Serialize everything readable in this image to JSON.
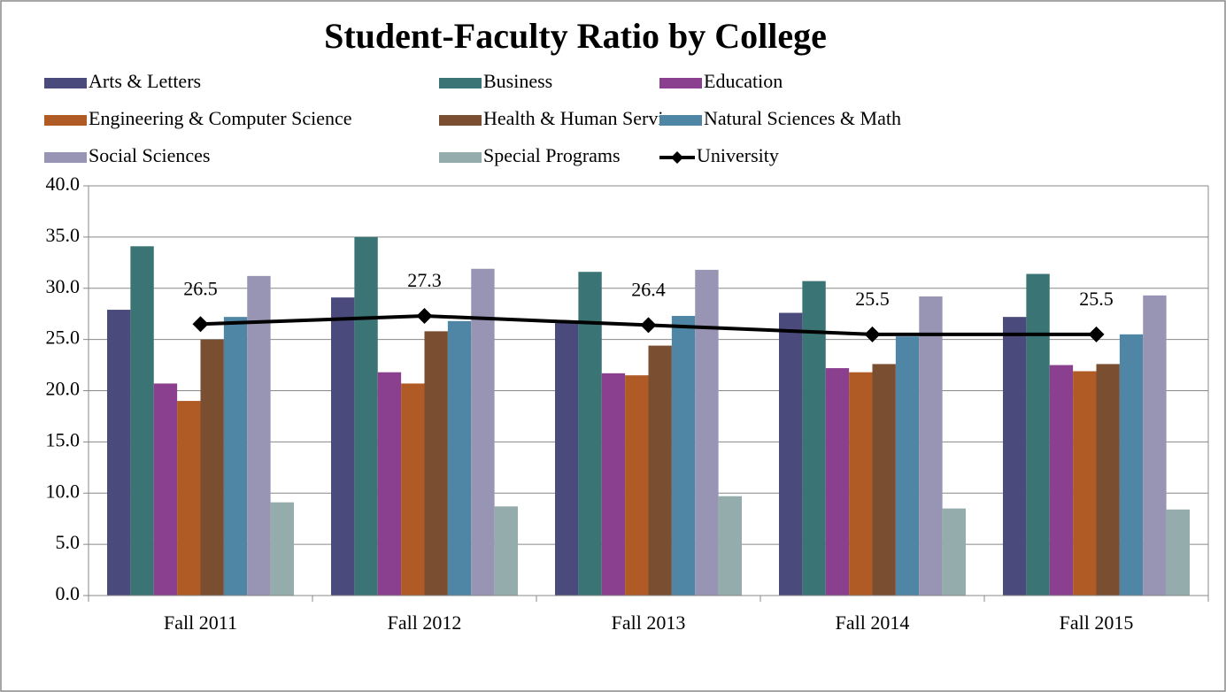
{
  "chart_data": {
    "type": "bar",
    "title": "Student-Faculty Ratio by College",
    "categories": [
      "Fall 2011",
      "Fall 2012",
      "Fall 2013",
      "Fall 2014",
      "Fall 2015"
    ],
    "series": [
      {
        "name": "Arts & Letters",
        "color": "#4a4a7c",
        "values": [
          27.9,
          29.1,
          26.6,
          27.6,
          27.2
        ]
      },
      {
        "name": "Business",
        "color": "#3a7474",
        "values": [
          34.1,
          35.0,
          31.6,
          30.7,
          31.4
        ]
      },
      {
        "name": "Education",
        "color": "#8b3f8f",
        "values": [
          20.7,
          21.8,
          21.7,
          22.2,
          22.5
        ]
      },
      {
        "name": "Engineering & Computer Science",
        "color": "#b05a25",
        "values": [
          19.0,
          20.7,
          21.5,
          21.8,
          21.9
        ]
      },
      {
        "name": "Health & Human Services",
        "color": "#7a4e30",
        "values": [
          25.0,
          25.8,
          24.4,
          22.6,
          22.6
        ]
      },
      {
        "name": "Natural Sciences & Math",
        "color": "#4f86a6",
        "values": [
          27.2,
          26.8,
          27.3,
          25.3,
          25.5
        ]
      },
      {
        "name": "Social Sciences",
        "color": "#9795b3",
        "values": [
          31.2,
          31.9,
          31.8,
          29.2,
          29.3
        ]
      },
      {
        "name": "Special Programs",
        "color": "#94acab",
        "values": [
          9.1,
          8.7,
          9.7,
          8.5,
          8.4
        ]
      },
      {
        "name": "University",
        "color": "#000000",
        "type": "line",
        "values": [
          26.5,
          27.3,
          26.4,
          25.5,
          25.5
        ]
      }
    ],
    "ylim": [
      0,
      40
    ],
    "yticks": [
      {
        "value": 0,
        "label": "0.0"
      },
      {
        "value": 5,
        "label": "5.0"
      },
      {
        "value": 10,
        "label": "10.0"
      },
      {
        "value": 15,
        "label": "15.0"
      },
      {
        "value": 20,
        "label": "20.0"
      },
      {
        "value": 25,
        "label": "25.0"
      },
      {
        "value": 30,
        "label": "30.0"
      },
      {
        "value": 35,
        "label": "35.0"
      },
      {
        "value": 40,
        "label": "40.0"
      }
    ],
    "grid": true
  }
}
